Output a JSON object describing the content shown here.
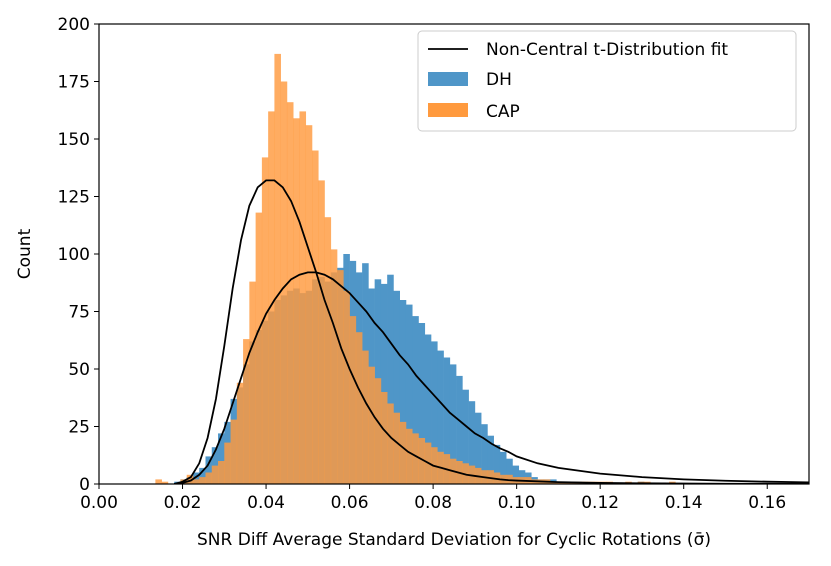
{
  "chart_data": {
    "type": "histogram",
    "title": "",
    "xlabel": "SNR Diff Average Standard Deviation for Cyclic Rotations (σ̄)",
    "ylabel": "Count",
    "xlim": [
      0.0,
      0.17
    ],
    "ylim": [
      0,
      200
    ],
    "xticks": [
      "0.00",
      "0.02",
      "0.04",
      "0.06",
      "0.08",
      "0.10",
      "0.12",
      "0.14",
      "0.16"
    ],
    "yticks": [
      "0",
      "25",
      "50",
      "75",
      "100",
      "125",
      "150",
      "175",
      "200"
    ],
    "legend_position": "top-right",
    "legend": [
      "Non-Central t-Distribution fit",
      "DH",
      "CAP"
    ],
    "colors": {
      "DH": "#4f96c8",
      "CAP": "#ff9a3e",
      "overlap": "#d98942",
      "fit": "#000000"
    },
    "bin_width": 0.0015,
    "series": [
      {
        "name": "DH",
        "kind": "histogram",
        "bin_start": 0.018,
        "values": [
          1,
          2,
          3,
          5,
          7,
          12,
          16,
          22,
          27,
          37,
          42,
          52,
          62,
          67,
          71,
          75,
          80,
          82,
          84,
          85,
          83,
          84,
          89,
          90,
          88,
          92,
          94,
          100,
          97,
          92,
          96,
          85,
          89,
          87,
          91,
          84,
          80,
          78,
          73,
          70,
          65,
          62,
          58,
          55,
          52,
          47,
          41,
          36,
          31,
          26,
          21,
          17,
          14,
          11,
          8,
          6,
          5,
          3,
          2,
          2,
          2,
          1,
          1,
          1,
          1,
          0,
          0,
          0,
          0,
          0,
          0,
          0,
          0,
          0,
          1
        ]
      },
      {
        "name": "CAP",
        "kind": "histogram",
        "bin_start": 0.0135,
        "values": [
          2,
          1,
          0,
          0,
          2,
          4,
          2,
          3,
          5,
          8,
          10,
          18,
          28,
          44,
          63,
          88,
          118,
          142,
          162,
          187,
          175,
          166,
          159,
          162,
          156,
          145,
          132,
          116,
          102,
          93,
          84,
          73,
          66,
          58,
          51,
          46,
          40,
          35,
          31,
          27,
          24,
          22,
          20,
          18,
          16,
          14,
          13,
          11,
          10,
          9,
          8,
          7,
          6,
          6,
          5,
          4,
          4,
          3,
          3,
          3,
          2,
          2,
          2,
          1,
          1,
          1,
          1,
          1,
          1,
          1,
          1,
          1,
          1,
          0,
          0,
          1,
          0,
          1,
          1,
          0,
          0,
          0,
          1
        ]
      },
      {
        "name": "Non-Central t-Distribution fit (CAP)",
        "kind": "line",
        "x": [
          0.018,
          0.02,
          0.022,
          0.024,
          0.026,
          0.028,
          0.03,
          0.032,
          0.034,
          0.036,
          0.038,
          0.04,
          0.042,
          0.044,
          0.046,
          0.048,
          0.05,
          0.052,
          0.054,
          0.056,
          0.058,
          0.06,
          0.062,
          0.064,
          0.066,
          0.068,
          0.07,
          0.072,
          0.074,
          0.076,
          0.078,
          0.08,
          0.082,
          0.084,
          0.086,
          0.088,
          0.09,
          0.092,
          0.094,
          0.096,
          0.098,
          0.1,
          0.11,
          0.12,
          0.13,
          0.14,
          0.15,
          0.16,
          0.17
        ],
        "y": [
          0,
          1,
          3,
          9,
          20,
          37,
          60,
          85,
          106,
          121,
          129,
          132,
          132,
          129,
          123,
          114,
          103,
          92,
          80,
          70,
          59,
          50,
          42,
          35,
          29,
          24,
          20,
          17,
          14,
          12,
          10,
          8,
          7,
          6,
          5,
          4,
          3.5,
          3,
          2.5,
          2,
          1.7,
          1.5,
          0.8,
          0.5,
          0.3,
          0.2,
          0.1,
          0.1,
          0.05
        ]
      },
      {
        "name": "Non-Central t-Distribution fit (DH)",
        "kind": "line",
        "x": [
          0.018,
          0.02,
          0.022,
          0.024,
          0.026,
          0.028,
          0.03,
          0.032,
          0.034,
          0.036,
          0.038,
          0.04,
          0.042,
          0.044,
          0.046,
          0.048,
          0.05,
          0.052,
          0.054,
          0.056,
          0.058,
          0.06,
          0.062,
          0.064,
          0.066,
          0.068,
          0.07,
          0.072,
          0.074,
          0.076,
          0.078,
          0.08,
          0.082,
          0.084,
          0.086,
          0.088,
          0.09,
          0.092,
          0.094,
          0.096,
          0.098,
          0.1,
          0.105,
          0.11,
          0.12,
          0.13,
          0.14,
          0.15,
          0.16,
          0.17
        ],
        "y": [
          0,
          0.5,
          1.5,
          4,
          8,
          15,
          24,
          35,
          46,
          57,
          66,
          74,
          80,
          85,
          89,
          91,
          92,
          92,
          91,
          89,
          86,
          83,
          79,
          75,
          70,
          66,
          61,
          56,
          52,
          47,
          43,
          39,
          35,
          31,
          28,
          25,
          22,
          20,
          17.5,
          15.5,
          14,
          12,
          9,
          7,
          4.5,
          3,
          2,
          1.4,
          1,
          0.7
        ]
      }
    ]
  }
}
